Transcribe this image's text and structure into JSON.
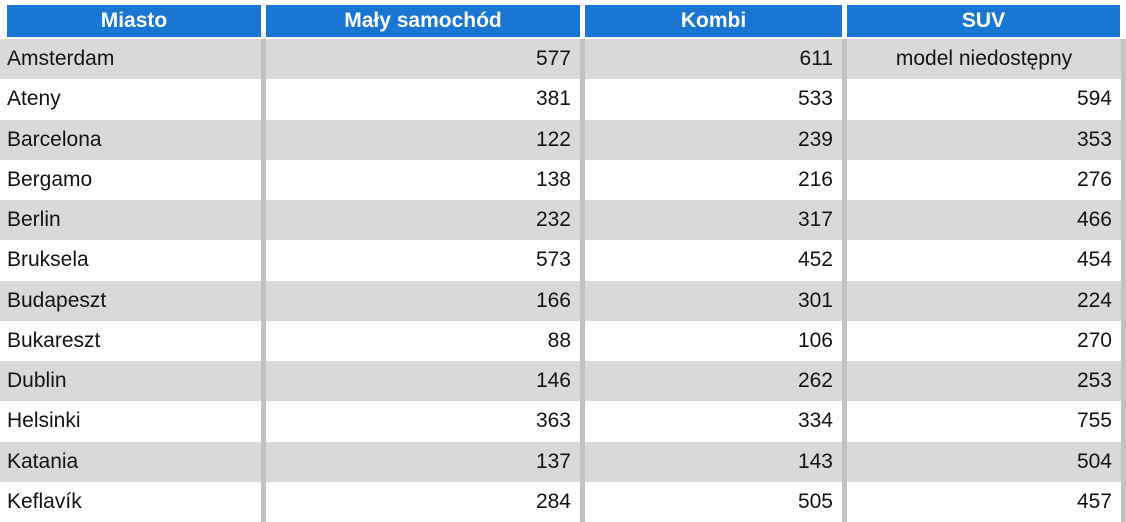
{
  "chart_data": {
    "type": "table",
    "columns": [
      {
        "key": "miasto",
        "label": "Miasto"
      },
      {
        "key": "maly-samochod",
        "label": "Mały samochód"
      },
      {
        "key": "kombi",
        "label": "Kombi"
      },
      {
        "key": "suv",
        "label": "SUV"
      }
    ],
    "rows": [
      [
        "Amsterdam",
        "577",
        "611",
        "model niedostępny"
      ],
      [
        "Ateny",
        "381",
        "533",
        "594"
      ],
      [
        "Barcelona",
        "122",
        "239",
        "353"
      ],
      [
        "Bergamo",
        "138",
        "216",
        "276"
      ],
      [
        "Berlin",
        "232",
        "317",
        "466"
      ],
      [
        "Bruksela",
        "573",
        "452",
        "454"
      ],
      [
        "Budapeszt",
        "166",
        "301",
        "224"
      ],
      [
        "Bukareszt",
        "88",
        "106",
        "270"
      ],
      [
        "Dublin",
        "146",
        "262",
        "253"
      ],
      [
        "Helsinki",
        "363",
        "334",
        "755"
      ],
      [
        "Katania",
        "137",
        "143",
        "504"
      ],
      [
        "Keflavík",
        "284",
        "505",
        "457"
      ]
    ],
    "categories": [
      "Amsterdam",
      "Ateny",
      "Barcelona",
      "Bergamo",
      "Berlin",
      "Bruksela",
      "Budapeszt",
      "Bukareszt",
      "Dublin",
      "Helsinki",
      "Katania",
      "Keflavík"
    ],
    "series": [
      {
        "name": "Mały samochód",
        "values": [
          577,
          381,
          122,
          138,
          232,
          573,
          166,
          88,
          146,
          363,
          137,
          284
        ]
      },
      {
        "name": "Kombi",
        "values": [
          611,
          533,
          239,
          216,
          317,
          452,
          301,
          106,
          262,
          334,
          143,
          505
        ]
      },
      {
        "name": "SUV",
        "values": [
          null,
          594,
          353,
          276,
          466,
          454,
          224,
          270,
          253,
          755,
          504,
          457
        ]
      }
    ],
    "unavailable_text": "model niedostępny"
  },
  "colors": {
    "header_bg": "#1976D2",
    "header_text": "#FFFFFF",
    "stripe_gray": "#D9D9D9",
    "row_white": "#FFFFFF",
    "divider": "#C2C2C2",
    "cell_text": "#141414"
  }
}
